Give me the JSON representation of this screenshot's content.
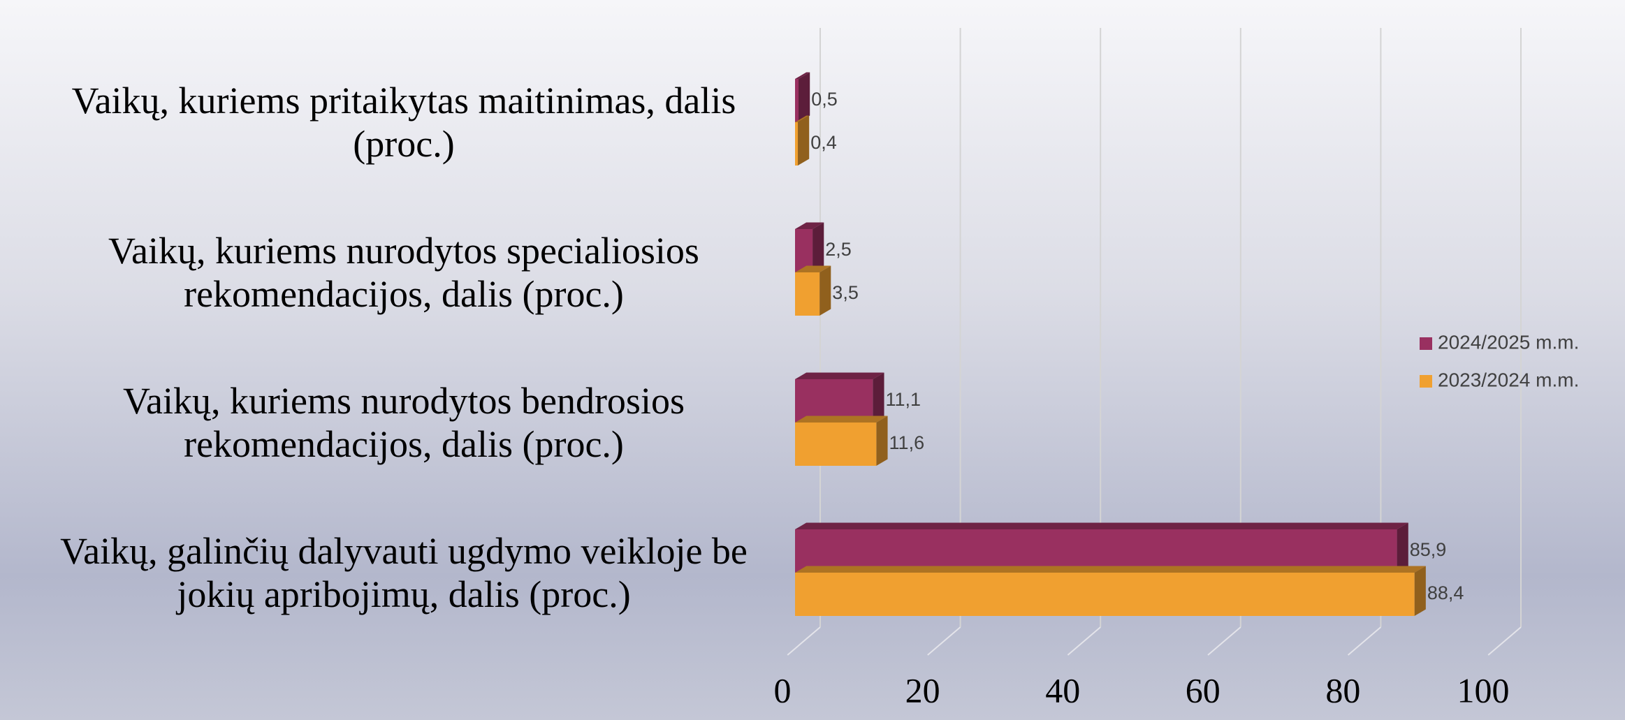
{
  "chart_data": {
    "type": "bar",
    "orientation": "horizontal",
    "categories": [
      "Vaikų, kuriems pritaikytas maitinimas, dalis (proc.)",
      "Vaikų, kuriems nurodytos specialiosios rekomendacijos, dalis (proc.)",
      "Vaikų, kuriems nurodytos bendrosios rekomendacijos, dalis (proc.)",
      "Vaikų, galinčių dalyvauti ugdymo veikloje be jokių apribojimų, dalis (proc.)"
    ],
    "series": [
      {
        "name": "2024/2025 m.m.",
        "color": "#993060",
        "values": [
          0.5,
          2.5,
          11.1,
          85.9
        ],
        "value_labels": [
          "0,5",
          "2,5",
          "11,1",
          "85,9"
        ]
      },
      {
        "name": "2023/2024 m.m.",
        "color": "#f0a030",
        "values": [
          0.4,
          3.5,
          11.6,
          88.4
        ],
        "value_labels": [
          "0,4",
          "3,5",
          "11,6",
          "88,4"
        ]
      }
    ],
    "xlim": [
      0,
      100
    ],
    "xticks": [
      0,
      20,
      40,
      60,
      80,
      100
    ],
    "grid": true,
    "legend": "right"
  }
}
